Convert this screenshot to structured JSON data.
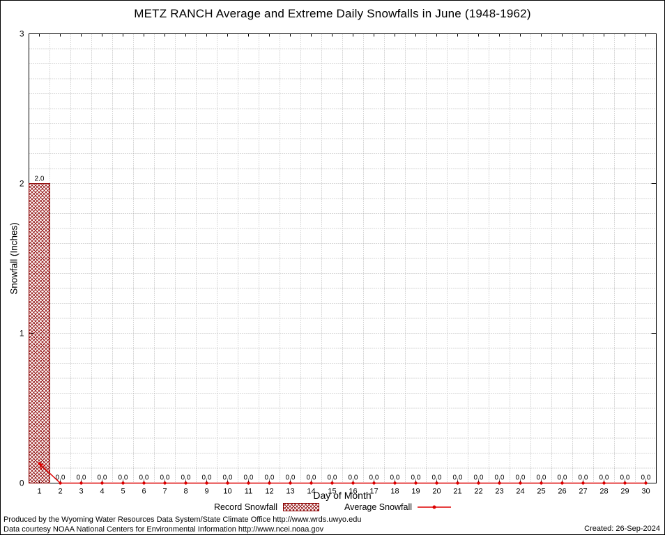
{
  "chart_data": {
    "type": "bar",
    "title": "METZ RANCH Average and Extreme Daily Snowfalls in June (1948-1962)",
    "xlabel": "Day of Month",
    "ylabel": "Snowfall (Inches)",
    "ylim": [
      0,
      3
    ],
    "y_major_ticks": [
      0,
      1,
      2,
      3
    ],
    "y_minor_step": 0.1,
    "grid": true,
    "legend_position": "bottom",
    "categories": [
      1,
      2,
      3,
      4,
      5,
      6,
      7,
      8,
      9,
      10,
      11,
      12,
      13,
      14,
      15,
      16,
      17,
      18,
      19,
      20,
      21,
      22,
      23,
      24,
      25,
      26,
      27,
      28,
      29,
      30
    ],
    "series": [
      {
        "name": "Record Snowfall",
        "type": "bar",
        "values": [
          2.0,
          0,
          0,
          0,
          0,
          0,
          0,
          0,
          0,
          0,
          0,
          0,
          0,
          0,
          0,
          0,
          0,
          0,
          0,
          0,
          0,
          0,
          0,
          0,
          0,
          0,
          0,
          0,
          0,
          0
        ]
      },
      {
        "name": "Average Snowfall",
        "type": "line",
        "values": [
          0.13,
          0,
          0,
          0,
          0,
          0,
          0,
          0,
          0,
          0,
          0,
          0,
          0,
          0,
          0,
          0,
          0,
          0,
          0,
          0,
          0,
          0,
          0,
          0,
          0,
          0,
          0,
          0,
          0,
          0
        ]
      }
    ],
    "bar_labels": [
      "2.0",
      "0.0",
      "0.0",
      "0.0",
      "0.0",
      "0.0",
      "0.0",
      "0.0",
      "0.0",
      "0.0",
      "0.0",
      "0.0",
      "0.0",
      "0.0",
      "0.0",
      "0.0",
      "0.0",
      "0.0",
      "0.0",
      "0.0",
      "0.0",
      "0.0",
      "0.0",
      "0.0",
      "0.0",
      "0.0",
      "0.0",
      "0.0",
      "0.0",
      "0.0"
    ],
    "colors": {
      "record": "#8b0000",
      "average": "#dd0000",
      "grid": "#b0b0b0",
      "frame": "#000000"
    }
  },
  "footer": {
    "line1": "Produced by the Wyoming Water Resources Data System/State Climate Office http://www.wrds.uwyo.edu",
    "line2": "Data courtesy NOAA National Centers for Environmental Information http://www.ncei.noaa.gov",
    "created": "Created: 26-Sep-2024"
  }
}
